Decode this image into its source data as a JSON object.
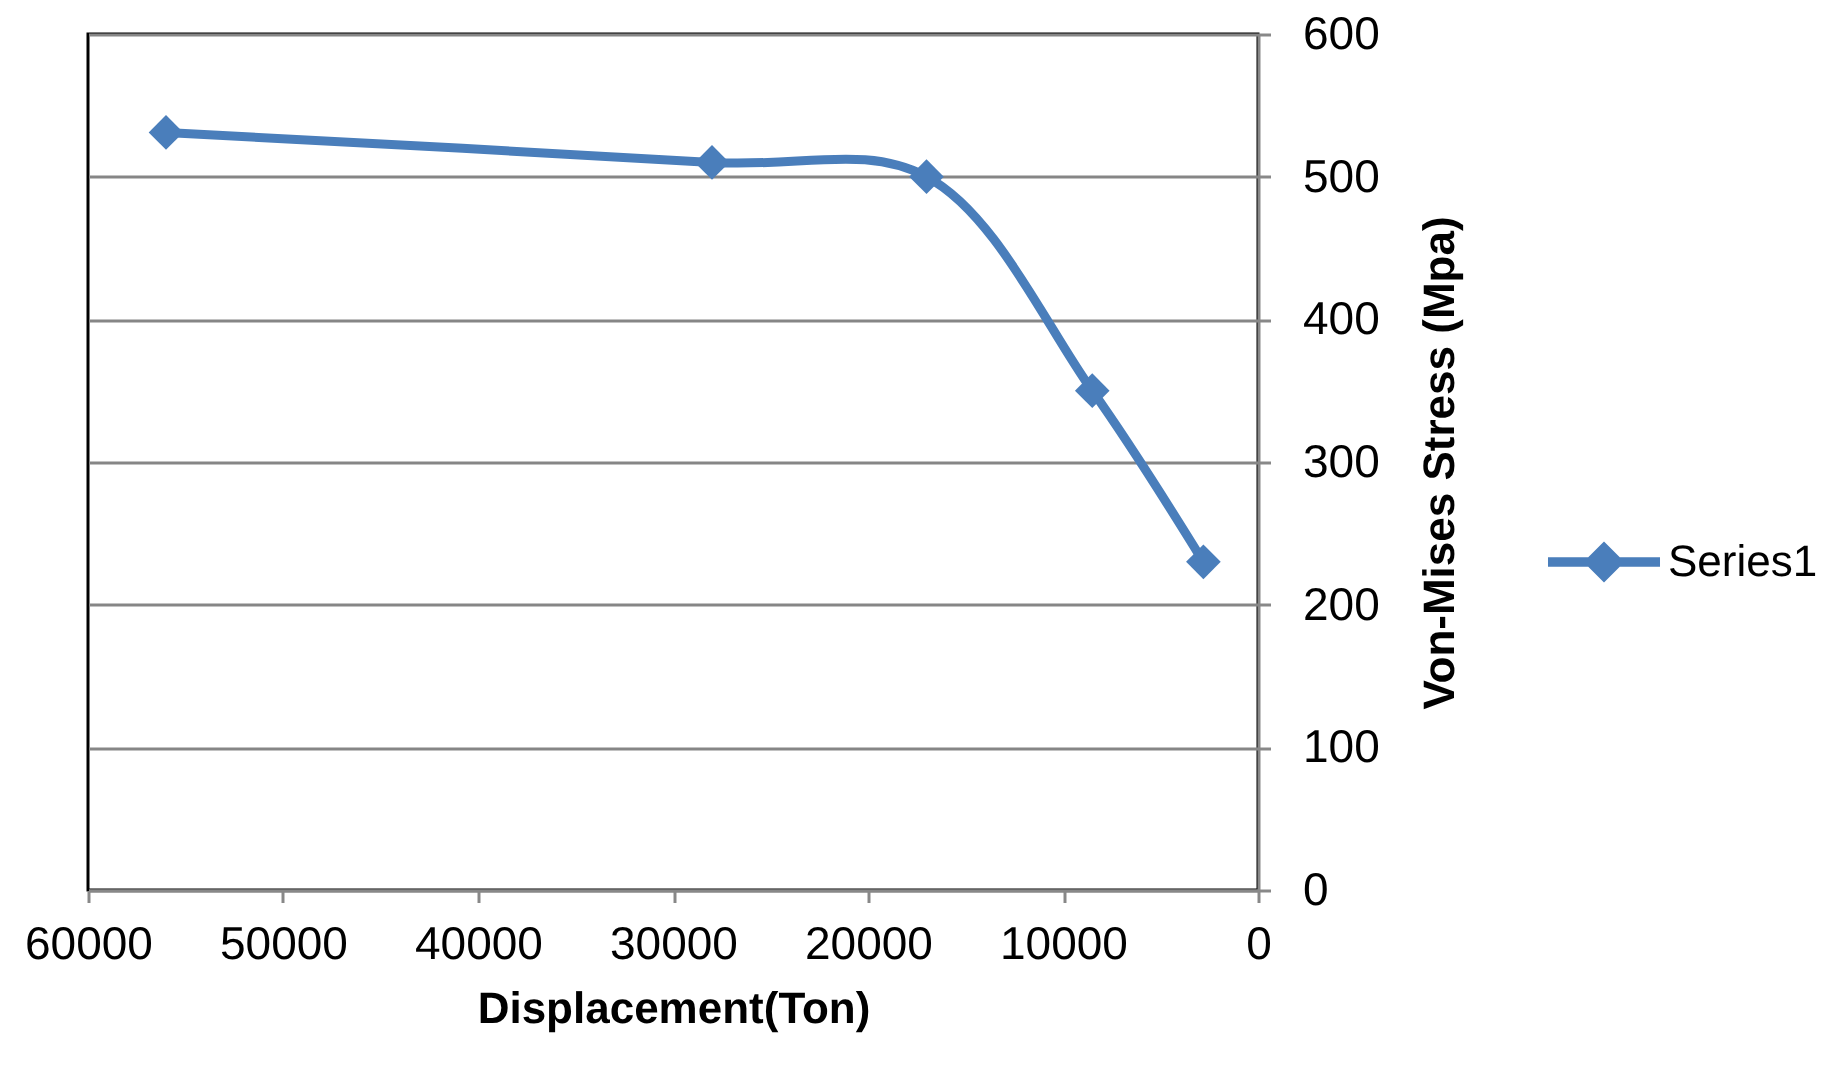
{
  "chart_data": {
    "type": "line",
    "xlabel": "Displacement(Ton)",
    "ylabel": "Von-Mises Stress (Mpa)",
    "x": [
      56000,
      28000,
      17000,
      8500,
      2800
    ],
    "series": [
      {
        "name": "Series1",
        "color": "#4a7ebb",
        "values": [
          531,
          510,
          500,
          350,
          230
        ]
      }
    ],
    "xlim": [
      60000,
      0
    ],
    "xticks": [
      60000,
      50000,
      40000,
      30000,
      20000,
      10000,
      0
    ],
    "ylim": [
      0,
      600
    ],
    "yticks": [
      0,
      100,
      200,
      300,
      400,
      500,
      600
    ],
    "grid": "y",
    "legend": "right",
    "marker": "diamond",
    "line_style": "solid"
  }
}
